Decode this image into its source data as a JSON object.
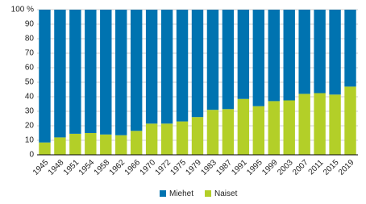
{
  "chart_data": {
    "type": "stacked_bar",
    "categories": [
      "1945",
      "1948",
      "1951",
      "1954",
      "1958",
      "1962",
      "1966",
      "1970",
      "1972",
      "1975",
      "1979",
      "1983",
      "1987",
      "1991",
      "1995",
      "1999",
      "2003",
      "2007",
      "2011",
      "2015",
      "2019"
    ],
    "series": [
      {
        "name": "Miehet",
        "color": "#0073b0",
        "values": [
          91.5,
          88,
          85.5,
          85,
          86,
          86.5,
          83.5,
          78.5,
          78.5,
          77,
          74,
          69,
          68.5,
          61.5,
          66.5,
          63,
          62.5,
          58,
          57.5,
          58.5,
          53
        ]
      },
      {
        "name": "Naiset",
        "color": "#b3cf28",
        "values": [
          8.5,
          12,
          14.5,
          15,
          14,
          13.5,
          16.5,
          21.5,
          21.5,
          23,
          26,
          31,
          31.5,
          38.5,
          33.5,
          37,
          37.5,
          42,
          42.5,
          41.5,
          47
        ]
      }
    ],
    "ylim": [
      0,
      100
    ],
    "yticks": [
      0,
      10,
      20,
      30,
      40,
      50,
      60,
      70,
      80,
      90,
      {
        "value": 100,
        "label": "100 %"
      }
    ],
    "grid": true,
    "legend": "bottom"
  }
}
